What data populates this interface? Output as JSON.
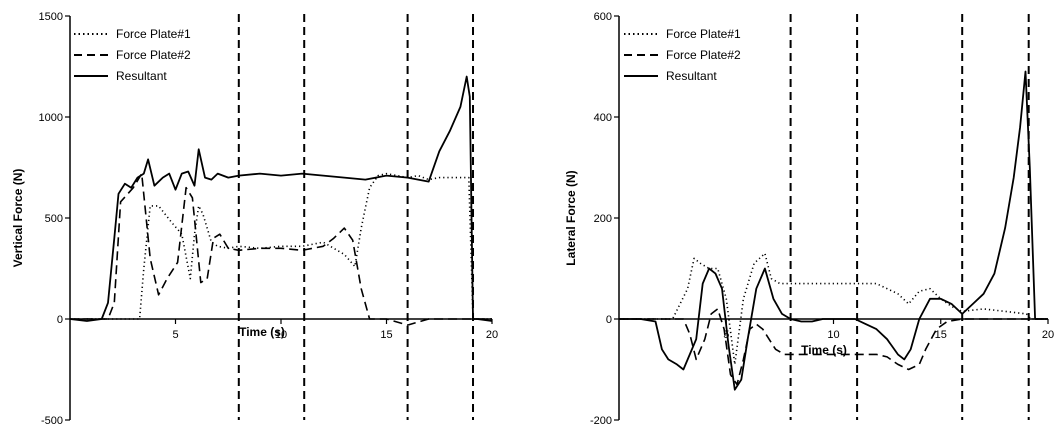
{
  "chart_data": [
    {
      "type": "line",
      "title": "",
      "xlabel": "Time (s)",
      "ylabel": "Vertical Force (N)",
      "xlim": [
        0,
        20
      ],
      "ylim": [
        -500,
        1500
      ],
      "xticks": [
        5,
        10,
        15,
        20
      ],
      "yticks": [
        -500,
        0,
        500,
        1000,
        1500
      ],
      "vlines": [
        8,
        11.1,
        16,
        19.1
      ],
      "legend": "top-left",
      "series": [
        {
          "name": "Force Plate#1",
          "style": "dotted",
          "x": [
            0,
            3.3,
            3.5,
            3.8,
            4.2,
            4.8,
            5.3,
            5.7,
            5.9,
            6.1,
            6.3,
            6.7,
            7,
            7.5,
            8,
            9,
            10,
            11,
            12,
            13,
            13.5,
            13.8,
            14.2,
            14.6,
            15,
            15.5,
            16,
            16.5,
            17,
            17.5,
            18,
            18.5,
            18.9,
            19.1,
            19.4,
            20
          ],
          "values": [
            0,
            0,
            250,
            560,
            560,
            480,
            420,
            200,
            420,
            560,
            520,
            380,
            360,
            350,
            360,
            350,
            360,
            360,
            380,
            320,
            260,
            450,
            650,
            710,
            720,
            710,
            700,
            710,
            690,
            700,
            700,
            700,
            700,
            0,
            0,
            0
          ]
        },
        {
          "name": "Force Plate#2",
          "style": "dashed",
          "x": [
            0,
            1.8,
            2.1,
            2.4,
            3,
            3.4,
            3.8,
            4.2,
            4.6,
            5.1,
            5.5,
            5.8,
            6.2,
            6.5,
            6.8,
            7.1,
            7.5,
            8,
            9,
            10,
            11,
            12,
            12.5,
            13,
            13.4,
            13.8,
            14.2,
            15,
            16,
            17,
            18,
            19.1,
            20
          ],
          "values": [
            0,
            0,
            80,
            580,
            650,
            720,
            300,
            120,
            200,
            280,
            650,
            600,
            180,
            200,
            400,
            420,
            350,
            340,
            350,
            350,
            340,
            360,
            400,
            450,
            390,
            150,
            0,
            0,
            -30,
            0,
            0,
            0,
            0
          ]
        },
        {
          "name": "Resultant",
          "style": "solid",
          "x": [
            0,
            0.8,
            1.5,
            1.8,
            2.1,
            2.3,
            2.6,
            2.9,
            3.2,
            3.5,
            3.7,
            4,
            4.4,
            4.7,
            5,
            5.3,
            5.6,
            5.9,
            6.1,
            6.4,
            6.7,
            7,
            7.5,
            8,
            9,
            10,
            11,
            12,
            13,
            14,
            15,
            16,
            16.5,
            17,
            17.5,
            18,
            18.5,
            18.8,
            18.95,
            19.1,
            19.3,
            20
          ],
          "values": [
            0,
            -10,
            0,
            80,
            400,
            620,
            670,
            650,
            700,
            720,
            790,
            660,
            700,
            720,
            640,
            720,
            730,
            660,
            840,
            700,
            690,
            720,
            700,
            710,
            720,
            710,
            720,
            710,
            700,
            690,
            710,
            700,
            690,
            680,
            830,
            930,
            1050,
            1200,
            1100,
            0,
            0,
            -10
          ]
        }
      ]
    },
    {
      "type": "line",
      "title": "",
      "xlabel": "Time (s)",
      "ylabel": "Lateral Force (N)",
      "xlim": [
        0,
        20
      ],
      "ylim": [
        -200,
        600
      ],
      "xticks": [
        5,
        10,
        15,
        20
      ],
      "yticks": [
        -200,
        0,
        200,
        400,
        600
      ],
      "vlines": [
        8,
        11.1,
        16,
        19.1
      ],
      "legend": "top-left",
      "series": [
        {
          "name": "Force Plate#1",
          "style": "dotted",
          "x": [
            0,
            2.5,
            3.2,
            3.5,
            3.8,
            4.2,
            4.6,
            5,
            5.4,
            5.8,
            6.3,
            6.8,
            7.1,
            7.5,
            8,
            9,
            10,
            11,
            12,
            13,
            13.5,
            14,
            14.5,
            15,
            15.5,
            16,
            17,
            18,
            19,
            19.2,
            20
          ],
          "values": [
            0,
            0,
            60,
            120,
            110,
            100,
            100,
            40,
            -90,
            40,
            110,
            130,
            80,
            70,
            70,
            70,
            70,
            70,
            70,
            50,
            30,
            55,
            60,
            40,
            25,
            15,
            20,
            15,
            10,
            0,
            0
          ],
          "label_offset": 0
        },
        {
          "name": "Force Plate#2",
          "style": "dashed",
          "x": [
            0,
            3,
            3.3,
            3.6,
            4,
            4.3,
            4.6,
            4.9,
            5.2,
            5.5,
            5.8,
            6.1,
            6.4,
            6.7,
            7,
            7.3,
            7.7,
            8,
            9,
            10,
            11,
            12,
            12.5,
            13,
            13.5,
            14,
            14.3,
            14.8,
            15.3,
            16,
            17,
            18,
            19,
            19.2,
            20
          ],
          "values": [
            0,
            0,
            -30,
            -80,
            -40,
            10,
            20,
            -20,
            -110,
            -130,
            -80,
            -20,
            -10,
            -20,
            -40,
            -60,
            -70,
            -70,
            -70,
            -70,
            -70,
            -70,
            -75,
            -90,
            -100,
            -90,
            -60,
            -20,
            -5,
            0,
            0,
            0,
            0,
            0,
            0
          ]
        },
        {
          "name": "Resultant",
          "style": "solid",
          "x": [
            0,
            1,
            1.7,
            2,
            2.3,
            2.7,
            3,
            3.3,
            3.6,
            3.9,
            4.2,
            4.5,
            4.8,
            5.1,
            5.4,
            5.7,
            6,
            6.4,
            6.8,
            7.2,
            7.6,
            8,
            8.5,
            9,
            9.5,
            10,
            10.5,
            11,
            11.5,
            12,
            12.5,
            13,
            13.3,
            13.6,
            14,
            14.5,
            15,
            15.5,
            16,
            16.5,
            17,
            17.5,
            18,
            18.4,
            18.7,
            18.95,
            19.15,
            19.4,
            20
          ],
          "values": [
            0,
            0,
            -5,
            -60,
            -80,
            -90,
            -100,
            -70,
            -40,
            70,
            100,
            90,
            60,
            -50,
            -140,
            -120,
            -40,
            60,
            100,
            40,
            10,
            0,
            -5,
            -5,
            0,
            0,
            0,
            0,
            -10,
            -20,
            -40,
            -70,
            -80,
            -60,
            0,
            40,
            40,
            30,
            10,
            30,
            50,
            90,
            180,
            280,
            380,
            490,
            300,
            0,
            0
          ]
        }
      ]
    }
  ]
}
